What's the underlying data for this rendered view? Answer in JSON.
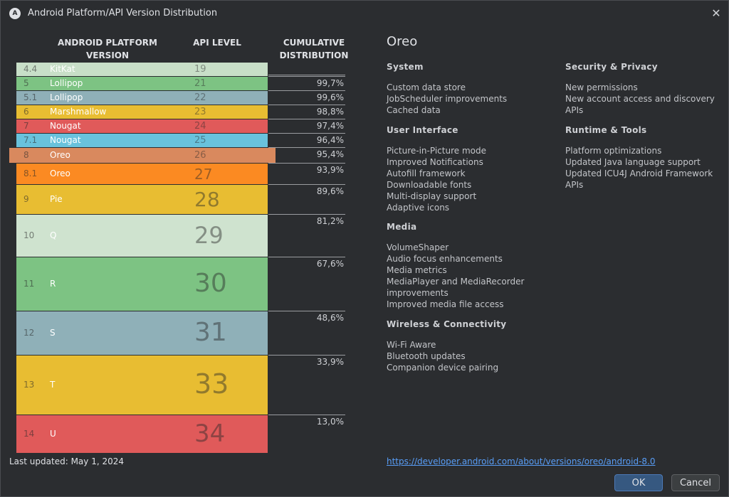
{
  "window": {
    "title": "Android Platform/API Version Distribution"
  },
  "table": {
    "headers": {
      "platform": "ANDROID PLATFORM\nVERSION",
      "api": "API LEVEL",
      "cumulative": "CUMULATIVE\nDISTRIBUTION"
    },
    "rows": [
      {
        "version": "4.4",
        "name": "KitKat",
        "api": "19",
        "cumulative": "",
        "color": "#c8dfc8"
      },
      {
        "version": "5",
        "name": "Lollipop",
        "api": "21",
        "cumulative": "99,7%",
        "color": "#7dc383"
      },
      {
        "version": "5.1",
        "name": "Lollipop",
        "api": "22",
        "cumulative": "99,6%",
        "color": "#8fb0b8"
      },
      {
        "version": "6",
        "name": "Marshmallow",
        "api": "23",
        "cumulative": "98,8%",
        "color": "#e8bd32"
      },
      {
        "version": "7",
        "name": "Nougat",
        "api": "24",
        "cumulative": "97,4%",
        "color": "#e05a5a"
      },
      {
        "version": "7.1",
        "name": "Nougat",
        "api": "25",
        "cumulative": "96,4%",
        "color": "#69c2dc"
      },
      {
        "version": "8",
        "name": "Oreo",
        "api": "26",
        "cumulative": "95,4%",
        "color": "#d9895e",
        "selected": true
      },
      {
        "version": "8.1",
        "name": "Oreo",
        "api": "27",
        "cumulative": "93,9%",
        "color": "#fb8a22"
      },
      {
        "version": "9",
        "name": "Pie",
        "api": "28",
        "cumulative": "89,6%",
        "color": "#e8bd32"
      },
      {
        "version": "10",
        "name": "Q",
        "api": "29",
        "cumulative": "81,2%",
        "color": "#cfe3cf"
      },
      {
        "version": "11",
        "name": "R",
        "api": "30",
        "cumulative": "67,6%",
        "color": "#7dc383"
      },
      {
        "version": "12",
        "name": "S",
        "api": "31",
        "cumulative": "48,6%",
        "color": "#8fb0b8"
      },
      {
        "version": "13",
        "name": "T",
        "api": "33",
        "cumulative": "33,9%",
        "color": "#e8bd32"
      },
      {
        "version": "14",
        "name": "U",
        "api": "34",
        "cumulative": "13,0%",
        "color": "#e05a5a"
      }
    ]
  },
  "details": {
    "title": "Oreo",
    "sections": [
      {
        "heading": "System",
        "items": [
          "Custom data store",
          "JobScheduler improvements",
          "Cached data"
        ]
      },
      {
        "heading": "User Interface",
        "items": [
          "Picture-in-Picture mode",
          "Improved Notifications",
          "Autofill framework",
          "Downloadable fonts",
          "Multi-display support",
          "Adaptive icons"
        ]
      },
      {
        "heading": "Media",
        "items": [
          "VolumeShaper",
          "Audio focus enhancements",
          "Media metrics",
          "MediaPlayer and MediaRecorder",
          "improvements",
          "Improved media file access"
        ]
      },
      {
        "heading": "Wireless & Connectivity",
        "items": [
          "Wi-Fi Aware",
          "Bluetooth updates",
          "Companion device pairing"
        ]
      },
      {
        "heading": "Security & Privacy",
        "items": [
          "New permissions",
          "New account access and discovery",
          "APIs"
        ]
      },
      {
        "heading": "Runtime & Tools",
        "items": [
          "Platform optimizations",
          "Updated Java language support",
          "Updated ICU4J Android Framework",
          "APIs"
        ]
      }
    ]
  },
  "footer": {
    "last_updated": "Last updated: May 1, 2024",
    "link": "https://developer.android.com/about/versions/oreo/android-8.0",
    "ok": "OK",
    "cancel": "Cancel"
  }
}
